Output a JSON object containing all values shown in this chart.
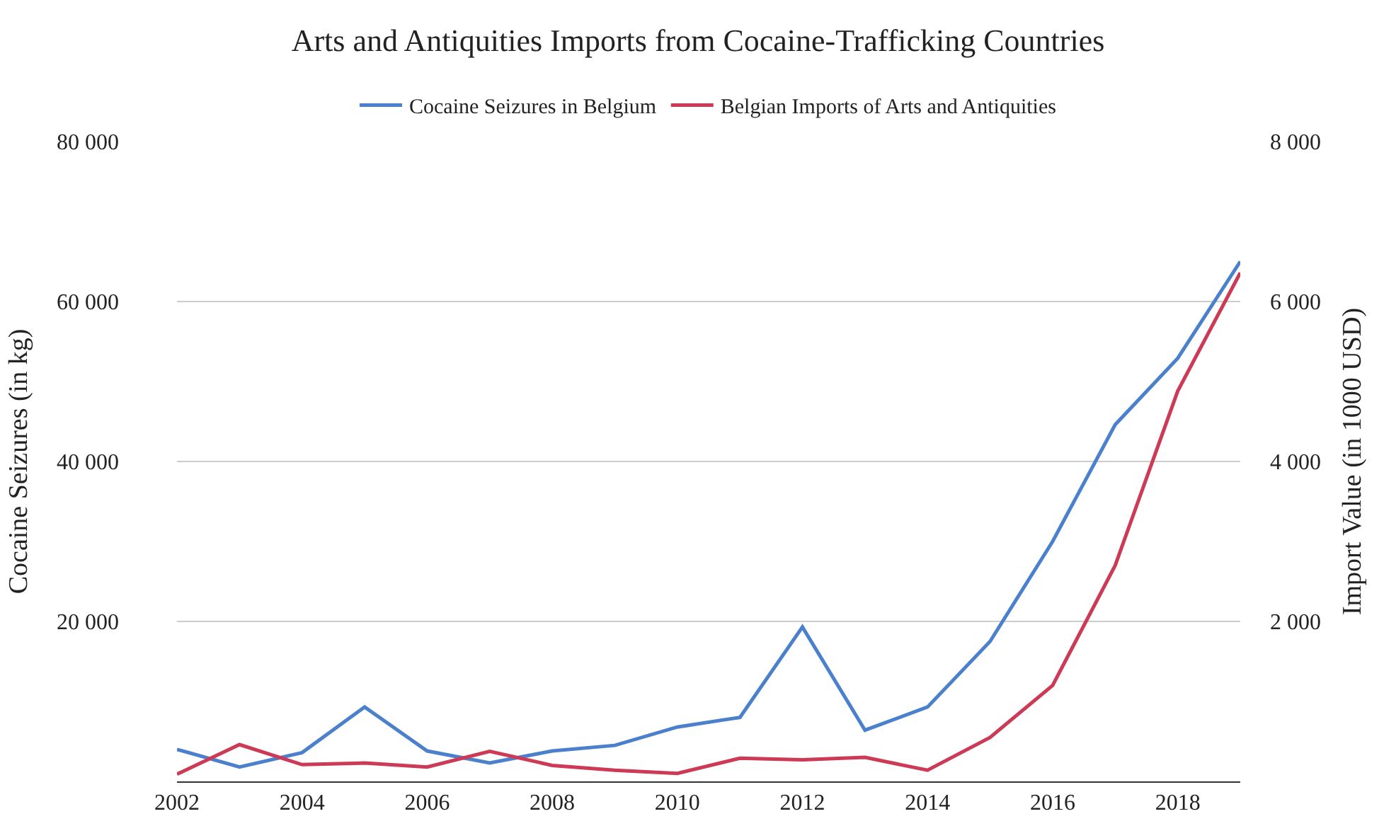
{
  "chart_data": {
    "type": "line",
    "title": "Arts and Antiquities Imports from Cocaine-Trafficking Countries",
    "ylabel": "Cocaine Seizures (in kg)",
    "y2label": "Import Value (in 1000 USD)",
    "x": [
      2002,
      2003,
      2004,
      2005,
      2006,
      2007,
      2008,
      2009,
      2010,
      2011,
      2012,
      2013,
      2014,
      2015,
      2016,
      2017,
      2018,
      2019
    ],
    "series": [
      {
        "name": "Cocaine Seizures in Belgium",
        "color": "#4a80cc",
        "values": [
          4000,
          1800,
          3600,
          9300,
          3800,
          2300,
          3800,
          4500,
          6800,
          8000,
          19300,
          6400,
          9300,
          17500,
          30000,
          44600,
          52900,
          65000
        ]
      },
      {
        "name": "Belgian Imports of Arts and Antiquities",
        "color": "#cc3a55",
        "axis": "y2",
        "values": [
          90,
          460,
          210,
          230,
          180,
          375,
          200,
          140,
          100,
          290,
          270,
          300,
          140,
          550,
          1200,
          2700,
          4880,
          6360
        ]
      }
    ],
    "xlim": [
      2002,
      2019
    ],
    "xticks": [
      2002,
      2004,
      2006,
      2008,
      2010,
      2012,
      2014,
      2016,
      2018
    ],
    "ylim": [
      0,
      80000
    ],
    "yticks": [
      {
        "value": 20000,
        "label": "20 000"
      },
      {
        "value": 40000,
        "label": "40 000"
      },
      {
        "value": 60000,
        "label": "60 000"
      },
      {
        "value": 80000,
        "label": "80 000"
      }
    ],
    "y2lim": [
      0,
      8000
    ],
    "y2ticks": [
      {
        "value": 2000,
        "label": "2 000"
      },
      {
        "value": 4000,
        "label": "4 000"
      },
      {
        "value": 6000,
        "label": "6 000"
      },
      {
        "value": 8000,
        "label": "8 000"
      }
    ],
    "grid": "y",
    "legend": "top",
    "marker": "none",
    "line_style": "solid"
  }
}
